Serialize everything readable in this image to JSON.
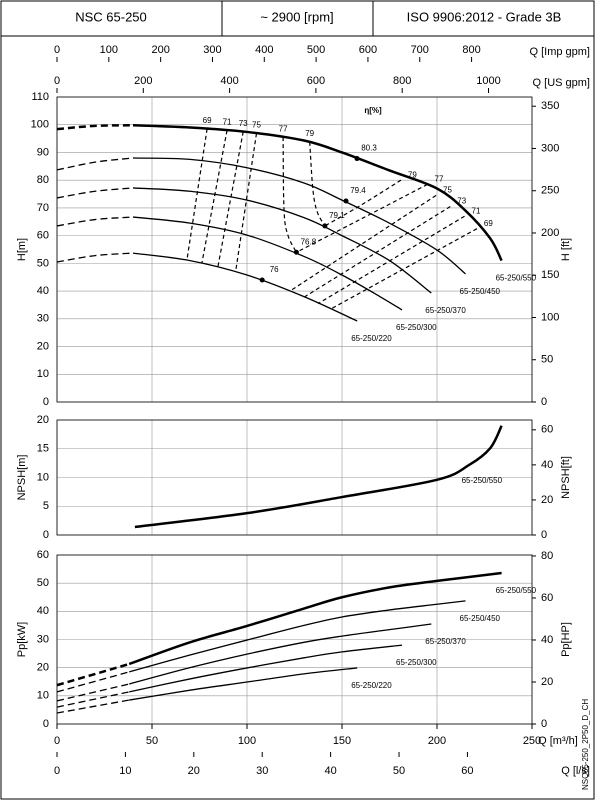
{
  "header": {
    "cells": [
      "NSC 65-250",
      "~ 2900 [rpm]",
      "ISO 9906:2012 - Grade 3B"
    ]
  },
  "x_axes": [
    {
      "label": "Q [Imp gpm]",
      "xlim": [
        0,
        916.6
      ],
      "xticks": [
        0,
        100,
        200,
        300,
        400,
        500,
        600,
        700,
        800
      ]
    },
    {
      "label": "Q [US gpm]",
      "xlim": [
        0,
        1100.8
      ],
      "xticks": [
        0,
        200,
        400,
        600,
        800,
        1000
      ]
    },
    {
      "label": "Q [l/s]",
      "xlim": [
        0,
        69.44
      ],
      "xticks": [
        0,
        10,
        20,
        30,
        40,
        50,
        60
      ]
    }
  ],
  "footer": "NSC65-250_2P50_D_CH",
  "chart_data": [
    {
      "type": "line",
      "ylabel": "H[m]",
      "y2label": "H [ft]",
      "annotation": "η[%]",
      "xlim": [
        0,
        250
      ],
      "xticks": [
        0,
        50,
        100,
        150,
        200,
        250
      ],
      "ylim": [
        0,
        110
      ],
      "yticks": [
        0,
        10,
        20,
        30,
        40,
        50,
        60,
        70,
        80,
        90,
        100,
        110
      ],
      "y2lim": [
        0,
        360.9
      ],
      "y2ticks": [
        0,
        50,
        100,
        150,
        200,
        250,
        300,
        350
      ],
      "grid": true,
      "dashed_below_x": 40,
      "series": [
        {
          "name": "65-250/550",
          "color": "#000000",
          "line_width": 2.5,
          "x": [
            0,
            20,
            40,
            70,
            100,
            130,
            150,
            175,
            200,
            215,
            228,
            234
          ],
          "values": [
            98.4,
            99.6,
            99.8,
            99,
            97.4,
            94.3,
            90,
            83.5,
            77,
            69,
            59,
            51
          ]
        },
        {
          "name": "65-250/450",
          "color": "#000000",
          "line_width": 1.3,
          "x": [
            0,
            20,
            40,
            70,
            100,
            130,
            150,
            175,
            200,
            215
          ],
          "values": [
            83.7,
            86.5,
            88,
            87.5,
            84.5,
            79,
            72.8,
            64.5,
            54.8,
            46.2
          ]
        },
        {
          "name": "65-250/370",
          "color": "#000000",
          "line_width": 1.3,
          "x": [
            0,
            20,
            40,
            70,
            100,
            130,
            150,
            175,
            197
          ],
          "values": [
            73.6,
            76,
            77.2,
            76,
            72.8,
            66.5,
            60,
            51,
            39.3
          ]
        },
        {
          "name": "65-250/300",
          "color": "#000000",
          "line_width": 1.3,
          "x": [
            0,
            20,
            40,
            70,
            100,
            130,
            150,
            170,
            181.6
          ],
          "values": [
            63.5,
            65.8,
            66.7,
            64.5,
            60.2,
            52.5,
            45.8,
            38,
            33.2
          ]
        },
        {
          "name": "65-250/220",
          "color": "#000000",
          "line_width": 1.3,
          "x": [
            0,
            20,
            40,
            70,
            100,
            130,
            158
          ],
          "values": [
            50.5,
            52.8,
            53.7,
            51,
            45.8,
            38,
            29.2
          ]
        }
      ],
      "efficiency_points": [
        {
          "eta": 80.3,
          "x": 157.9,
          "y": 87.8
        },
        {
          "eta": 79.4,
          "x": 152.1,
          "y": 72.5
        },
        {
          "eta": 79.1,
          "x": 141,
          "y": 63.5
        },
        {
          "eta": 76.8,
          "x": 126,
          "y": 54
        },
        {
          "eta": 76,
          "x": 108,
          "y": 44
        }
      ],
      "iso_efficiency": {
        "left": [
          {
            "eta": 69,
            "x": [
              79,
              68.4
            ],
            "values": [
              98.5,
              51.3
            ]
          },
          {
            "eta": 71,
            "x": [
              89.5,
              76.3
            ],
            "values": [
              98,
              50.3
            ]
          },
          {
            "eta": 73,
            "x": [
              98,
              84.7
            ],
            "values": [
              97.5,
              48.8
            ]
          },
          {
            "eta": 75,
            "x": [
              105,
              94
            ],
            "values": [
              96.9,
              47
            ]
          },
          {
            "eta": 77,
            "x": [
              119,
              119.5,
              121.6,
              126
            ],
            "values": [
              95.5,
              69,
              60,
              54
            ]
          },
          {
            "eta": 79,
            "x": [
              133,
              134.7,
              137,
              141
            ],
            "values": [
              93.8,
              76.5,
              68.5,
              63.5
            ]
          }
        ],
        "right": [
          {
            "eta": 79,
            "x": [
              181,
              160,
              141
            ],
            "values": [
              80,
              71,
              63.5
            ]
          },
          {
            "eta": 77,
            "x": [
              195,
              160,
              126
            ],
            "values": [
              78.5,
              66,
              54
            ]
          },
          {
            "eta": 75,
            "x": [
              199.5,
              122.6
            ],
            "values": [
              74.5,
              40
            ]
          },
          {
            "eta": 73,
            "x": [
              207,
              130.5
            ],
            "values": [
              70.5,
              38
            ]
          },
          {
            "eta": 71,
            "x": [
              214.5,
              137.4
            ],
            "values": [
              67,
              35.5
            ]
          },
          {
            "eta": 69,
            "x": [
              221,
              144
            ],
            "values": [
              62.5,
              33.5
            ]
          }
        ]
      }
    },
    {
      "type": "line",
      "ylabel": "NPSH[m]",
      "y2label": "NPSH[ft]",
      "xlim": [
        0,
        250
      ],
      "xticks": [
        0,
        50,
        100,
        150,
        200,
        250
      ],
      "ylim": [
        0,
        20
      ],
      "yticks": [
        0,
        5,
        10,
        15,
        20
      ],
      "y2lim": [
        0,
        65.6
      ],
      "y2ticks": [
        0,
        20,
        40,
        60
      ],
      "grid": true,
      "series": [
        {
          "name": "65-250/550",
          "color": "#000000",
          "line_width": 2.5,
          "x": [
            41,
            100,
            150,
            200,
            217,
            228,
            234
          ],
          "values": [
            1.4,
            3.8,
            6.6,
            9.6,
            12.2,
            15.1,
            19
          ]
        }
      ]
    },
    {
      "type": "line",
      "ylabel": "Pp[kW]",
      "y2label": "Pp[HP]",
      "xlabel": "Q [m³/h]",
      "xlim": [
        0,
        250
      ],
      "xticks": [
        0,
        50,
        100,
        150,
        200,
        250
      ],
      "ylim": [
        0,
        60
      ],
      "yticks": [
        0,
        10,
        20,
        30,
        40,
        50,
        60
      ],
      "y2lim": [
        0,
        80.46
      ],
      "y2ticks": [
        0,
        20,
        40,
        60,
        80
      ],
      "grid": true,
      "dashed_below_x": 38,
      "series": [
        {
          "name": "65-250/550",
          "color": "#000000",
          "line_width": 2.5,
          "x": [
            0,
            38,
            70,
            100,
            130,
            150,
            175,
            200,
            234
          ],
          "values": [
            13.8,
            21.3,
            29,
            34.8,
            41,
            45,
            48.5,
            50.8,
            53.6
          ]
        },
        {
          "name": "65-250/450",
          "color": "#000000",
          "line_width": 1.3,
          "x": [
            0,
            38,
            70,
            100,
            130,
            150,
            175,
            200,
            215
          ],
          "values": [
            11.4,
            18.5,
            24.5,
            29.8,
            35,
            38,
            40.5,
            42.5,
            43.7
          ]
        },
        {
          "name": "65-250/370",
          "color": "#000000",
          "line_width": 1.3,
          "x": [
            0,
            38,
            70,
            100,
            130,
            150,
            175,
            197
          ],
          "values": [
            8.2,
            14.2,
            20,
            24.8,
            29,
            31.2,
            33.5,
            35.5
          ]
        },
        {
          "name": "65-250/300",
          "color": "#000000",
          "line_width": 1.3,
          "x": [
            0,
            38,
            70,
            100,
            130,
            150,
            181.6
          ],
          "values": [
            6,
            11.4,
            16,
            19.9,
            23.5,
            25.6,
            28
          ]
        },
        {
          "name": "65-250/220",
          "color": "#000000",
          "line_width": 1.3,
          "x": [
            0,
            38,
            70,
            100,
            130,
            158
          ],
          "values": [
            3.9,
            8.5,
            12,
            14.9,
            17.8,
            19.9
          ]
        }
      ]
    }
  ]
}
